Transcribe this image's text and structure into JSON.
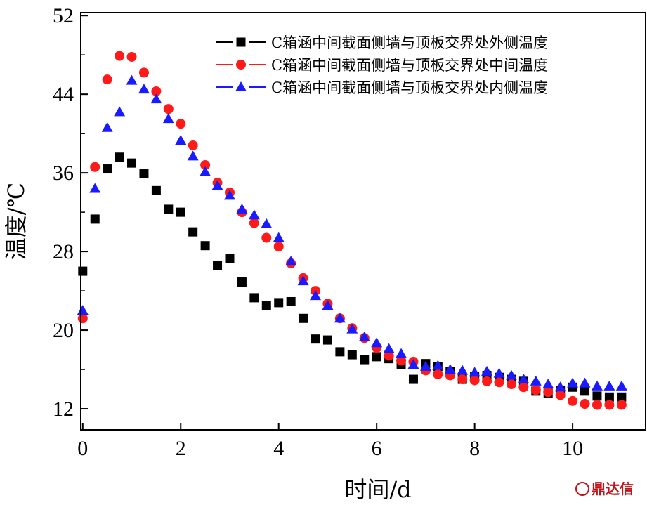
{
  "chart_data": {
    "type": "scatter",
    "title": "",
    "xlabel": "时间/d",
    "ylabel": "温度/℃",
    "xlim": [
      -0.04,
      11.49
    ],
    "ylim": [
      9.86,
      52.3
    ],
    "xticks": [
      0,
      2,
      4,
      6,
      8,
      10
    ],
    "yticks": [
      12,
      20,
      28,
      36,
      44,
      52
    ],
    "grid": false,
    "legend_position": "top-right",
    "x": [
      0,
      0.25,
      0.5,
      0.75,
      1,
      1.25,
      1.5,
      1.75,
      2,
      2.25,
      2.5,
      2.75,
      3,
      3.25,
      3.5,
      3.75,
      4,
      4.25,
      4.5,
      4.75,
      5,
      5.25,
      5.5,
      5.75,
      6,
      6.25,
      6.5,
      6.75,
      7,
      7.25,
      7.5,
      7.75,
      8,
      8.25,
      8.5,
      8.75,
      9,
      9.25,
      9.5,
      9.75,
      10,
      10.25,
      10.5,
      10.75,
      11
    ],
    "series": [
      {
        "name": "C箱涵中间截面侧墙与顶板交界处外侧温度",
        "color": "#000000",
        "marker": "square",
        "values": [
          26,
          31.3,
          36.4,
          37.6,
          37.0,
          35.9,
          34.2,
          32.3,
          32.0,
          30.0,
          28.6,
          26.6,
          27.3,
          24.9,
          23.3,
          22.5,
          22.8,
          22.9,
          21.2,
          19.1,
          19.0,
          17.8,
          17.5,
          17.0,
          17.3,
          17.1,
          16.5,
          15.0,
          16.6,
          16.3,
          15.8,
          15.0,
          15.3,
          15.4,
          15.2,
          15.0,
          14.8,
          13.8,
          13.6,
          13.9,
          14.2,
          13.8,
          13.3,
          13.2,
          13.2
        ]
      },
      {
        "name": "C箱涵中间截面侧墙与顶板交界处中间温度",
        "color": "#ff1a1a",
        "marker": "circle",
        "values": [
          21.2,
          36.6,
          45.5,
          47.9,
          47.8,
          46.2,
          44.3,
          42.5,
          41.0,
          38.8,
          36.8,
          35.0,
          34.0,
          32.0,
          30.9,
          29.4,
          28.5,
          26.8,
          25.3,
          24.0,
          22.7,
          21.2,
          20.2,
          19.2,
          18.2,
          17.4,
          16.9,
          16.8,
          15.9,
          15.5,
          15.4,
          15.0,
          14.9,
          14.8,
          14.7,
          14.5,
          14.2,
          13.9,
          13.7,
          13.4,
          12.8,
          12.5,
          12.4,
          12.4,
          12.4
        ]
      },
      {
        "name": "C箱涵中间截面侧墙与顶板交界处内侧温度",
        "color": "#1a1aff",
        "marker": "triangle",
        "values": [
          22.0,
          34.4,
          40.6,
          42.2,
          45.4,
          44.5,
          43.5,
          41.5,
          39.3,
          37.7,
          36.1,
          34.7,
          33.7,
          32.3,
          31.7,
          30.8,
          29.4,
          27.0,
          25.0,
          23.5,
          22.5,
          21.2,
          20.1,
          19.3,
          18.7,
          18.1,
          17.6,
          16.5,
          16.3,
          16.4,
          16.0,
          15.9,
          15.7,
          15.8,
          15.6,
          15.4,
          15.0,
          14.8,
          14.5,
          14.2,
          14.6,
          14.6,
          14.3,
          14.3,
          14.3
        ]
      }
    ]
  },
  "watermark": "鼎达信"
}
